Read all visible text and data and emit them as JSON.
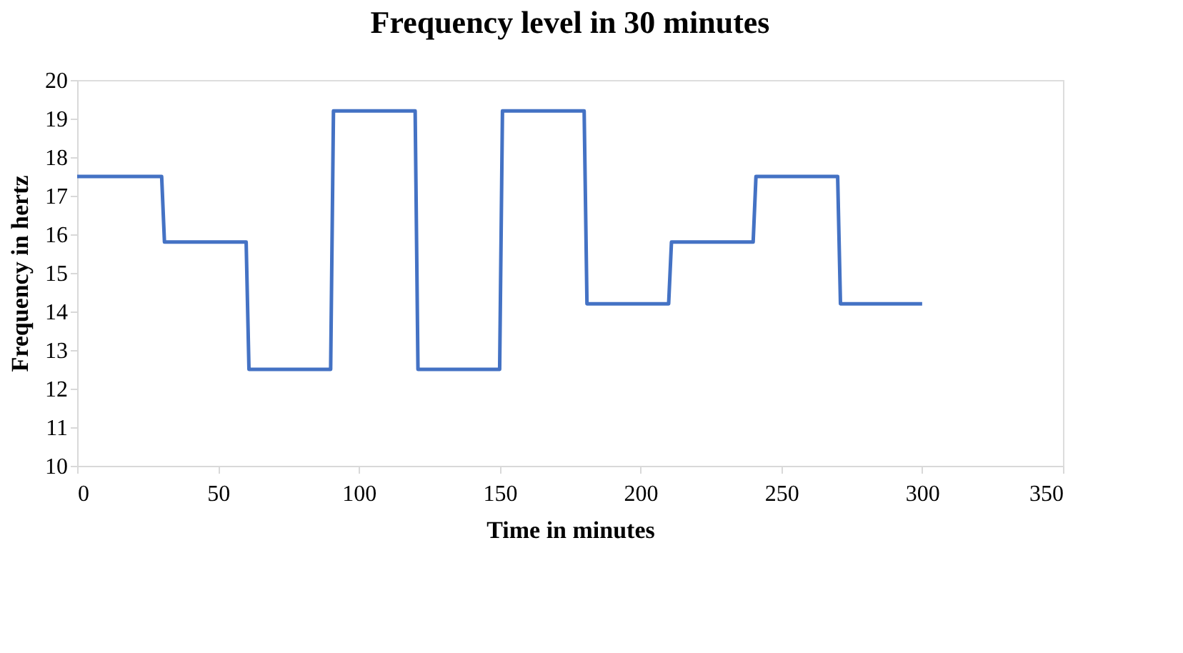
{
  "chart_data": {
    "type": "line",
    "title": "Frequency level in 30 minutes",
    "xlabel": "Time in minutes",
    "ylabel": "Frequency in hertz",
    "x": [
      0,
      30,
      31,
      60,
      61,
      90,
      91,
      120,
      121,
      150,
      151,
      180,
      181,
      210,
      211,
      240,
      241,
      270,
      271,
      300
    ],
    "series": [
      {
        "color": "#4472c4",
        "values": [
          17.5,
          17.5,
          15.8,
          15.8,
          12.5,
          12.5,
          19.2,
          19.2,
          12.5,
          12.5,
          19.2,
          19.2,
          14.2,
          14.2,
          15.8,
          15.8,
          17.5,
          17.5,
          14.2,
          14.2
        ]
      }
    ],
    "xlim": [
      0,
      350
    ],
    "xticks": [
      0,
      50,
      100,
      150,
      200,
      250,
      300,
      350
    ],
    "ylim": [
      10,
      20
    ],
    "yticks": [
      10,
      11,
      12,
      13,
      14,
      15,
      16,
      17,
      18,
      19,
      20
    ],
    "grid": false,
    "legend": false,
    "marker": "none",
    "line_style": "solid"
  }
}
